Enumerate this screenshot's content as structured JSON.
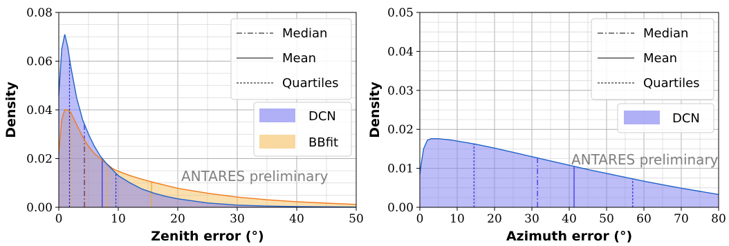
{
  "chart_data": [
    {
      "type": "area",
      "xlabel": "Zenith error (°)",
      "ylabel": "Density",
      "xlim": [
        0,
        50
      ],
      "ylim": [
        0,
        0.08
      ],
      "xticks": [
        0,
        10,
        20,
        30,
        40,
        50
      ],
      "yticks": [
        0.0,
        0.02,
        0.04,
        0.06,
        0.08
      ],
      "xtick_labels": [
        "0",
        "10",
        "20",
        "30",
        "40",
        "50"
      ],
      "ytick_labels": [
        "0.00",
        "0.02",
        "0.04",
        "0.06",
        "0.08"
      ],
      "grid": true,
      "annotation": "ANTARES preliminary",
      "series": [
        {
          "name": "DCN",
          "color": "#1f62c8",
          "fill": "#7b7bf0",
          "x": [
            0,
            0.5,
            1,
            1.5,
            2,
            3,
            4,
            5,
            6,
            7,
            8,
            9,
            10,
            12,
            14,
            16,
            18,
            20,
            25,
            30,
            35,
            40,
            45,
            50
          ],
          "y": [
            0.046,
            0.065,
            0.071,
            0.066,
            0.058,
            0.045,
            0.036,
            0.03,
            0.025,
            0.021,
            0.018,
            0.0155,
            0.013,
            0.01,
            0.0075,
            0.0058,
            0.0045,
            0.0035,
            0.0018,
            0.0009,
            0.0005,
            0.0003,
            0.0002,
            0.0001
          ],
          "median": 4.3,
          "mean": 7.3,
          "quartiles": [
            1.8,
            9.6
          ]
        },
        {
          "name": "BBfit",
          "color": "#f07a1a",
          "fill": "#f5c060",
          "x": [
            0,
            0.5,
            1,
            1.5,
            2,
            3,
            4,
            5,
            6,
            7,
            8,
            9,
            10,
            12,
            14,
            16,
            18,
            20,
            25,
            30,
            35,
            40,
            45,
            50
          ],
          "y": [
            0.022,
            0.036,
            0.04,
            0.04,
            0.039,
            0.034,
            0.029,
            0.025,
            0.022,
            0.02,
            0.018,
            0.016,
            0.0148,
            0.013,
            0.0115,
            0.0102,
            0.009,
            0.0078,
            0.0058,
            0.0042,
            0.0031,
            0.0023,
            0.0017,
            0.0012
          ],
          "median": 4.5,
          "mean": 15.6,
          "quartiles": [
            1.9,
            8.2
          ]
        }
      ],
      "legend": {
        "position": "top-right",
        "lines": [
          "Median",
          "Mean",
          "Quartiles"
        ],
        "patches": [
          "DCN",
          "BBfit"
        ]
      }
    },
    {
      "type": "area",
      "xlabel": "Azimuth error (°)",
      "ylabel": "Density",
      "xlim": [
        0,
        80
      ],
      "ylim": [
        0,
        0.05
      ],
      "xticks": [
        0,
        10,
        20,
        30,
        40,
        50,
        60,
        70,
        80
      ],
      "yticks": [
        0.0,
        0.01,
        0.02,
        0.03,
        0.04,
        0.05
      ],
      "xtick_labels": [
        "0",
        "10",
        "20",
        "30",
        "40",
        "50",
        "60",
        "70",
        "80"
      ],
      "ytick_labels": [
        "0.00",
        "0.01",
        "0.02",
        "0.03",
        "0.04",
        "0.05"
      ],
      "grid": true,
      "annotation": "ANTARES preliminary",
      "series": [
        {
          "name": "DCN",
          "color": "#1f62c8",
          "fill": "#7b7bf0",
          "x": [
            0,
            0.5,
            1,
            2,
            3,
            5,
            8,
            10,
            15,
            20,
            25,
            30,
            35,
            40,
            45,
            50,
            55,
            60,
            65,
            70,
            75,
            80
          ],
          "y": [
            0.0085,
            0.012,
            0.015,
            0.0172,
            0.0176,
            0.0176,
            0.0173,
            0.017,
            0.0162,
            0.0152,
            0.0141,
            0.013,
            0.0119,
            0.0108,
            0.0097,
            0.0087,
            0.0077,
            0.0067,
            0.0058,
            0.0049,
            0.0041,
            0.0033
          ],
          "median": 31.5,
          "mean": 41.3,
          "quartiles": [
            14.5,
            57.0
          ]
        }
      ],
      "legend": {
        "position": "top-right",
        "lines": [
          "Median",
          "Mean",
          "Quartiles"
        ],
        "patches": [
          "DCN"
        ]
      }
    }
  ]
}
